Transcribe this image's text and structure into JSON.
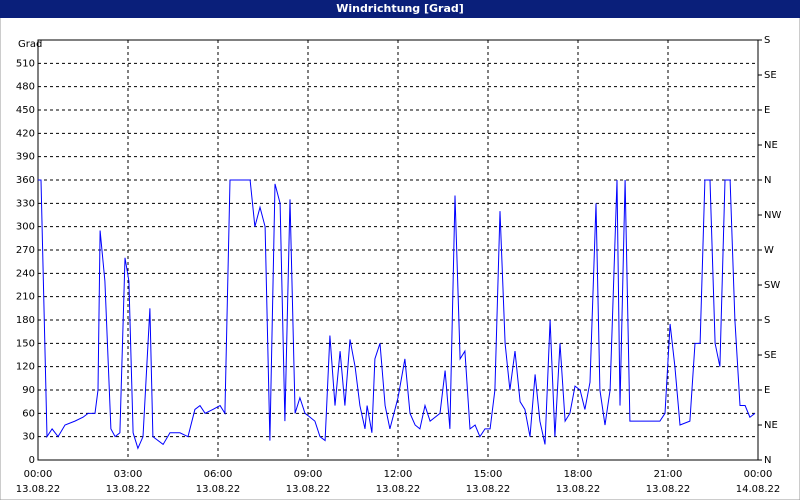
{
  "chart_data": {
    "type": "line",
    "title": "Windrichtung [Grad]",
    "y_label": "Grad",
    "x": [
      0,
      0.1,
      0.3,
      0.47,
      0.67,
      0.9,
      1.23,
      1.5,
      1.67,
      1.9,
      2,
      2.07,
      2.23,
      2.43,
      2.57,
      2.73,
      2.9,
      3.03,
      3.17,
      3.33,
      3.5,
      3.73,
      3.83,
      4.17,
      4.4,
      4.73,
      5,
      5.23,
      5.4,
      5.57,
      5.83,
      6.07,
      6.23,
      6.4,
      7.07,
      7.23,
      7.4,
      7.57,
      7.73,
      7.9,
      8.07,
      8.23,
      8.4,
      8.57,
      8.73,
      8.9,
      9.07,
      9.23,
      9.4,
      9.57,
      9.73,
      9.9,
      10.07,
      10.23,
      10.4,
      10.57,
      10.73,
      10.9,
      10.97,
      11.13,
      11.23,
      11.4,
      11.57,
      11.73,
      12,
      12.23,
      12.4,
      12.57,
      12.73,
      12.9,
      13.07,
      13.4,
      13.57,
      13.73,
      13.9,
      14.07,
      14.23,
      14.4,
      14.57,
      14.73,
      14.9,
      15.07,
      15.23,
      15.4,
      15.57,
      15.73,
      15.9,
      16.07,
      16.23,
      16.4,
      16.57,
      16.73,
      16.9,
      17.07,
      17.23,
      17.4,
      17.57,
      17.73,
      17.9,
      18.07,
      18.23,
      18.4,
      18.6,
      18.73,
      18.9,
      19.07,
      19.3,
      19.4,
      19.57,
      19.73,
      20.07,
      20.4,
      20.73,
      20.9,
      21.07,
      21.23,
      21.4,
      21.73,
      21.9,
      22.07,
      22.23,
      22.4,
      22.57,
      22.73,
      22.9,
      23.07,
      23.23,
      23.4,
      23.57,
      23.73,
      23.9
    ],
    "series": [
      {
        "color": "#0000ff",
        "values": [
          360,
          360,
          30,
          40,
          30,
          45,
          50,
          55,
          60,
          60,
          90,
          295,
          230,
          40,
          30,
          35,
          260,
          230,
          35,
          15,
          30,
          195,
          30,
          20,
          35,
          35,
          30,
          65,
          70,
          60,
          65,
          70,
          60,
          360,
          360,
          300,
          325,
          300,
          25,
          355,
          330,
          50,
          335,
          60,
          80,
          60,
          55,
          50,
          30,
          25,
          160,
          70,
          140,
          70,
          155,
          120,
          70,
          40,
          70,
          35,
          130,
          150,
          70,
          40,
          80,
          130,
          60,
          45,
          40,
          70,
          50,
          60,
          115,
          40,
          340,
          130,
          140,
          40,
          45,
          30,
          40,
          40,
          90,
          320,
          150,
          90,
          140,
          75,
          65,
          30,
          110,
          50,
          20,
          180,
          30,
          150,
          50,
          60,
          95,
          90,
          65,
          100,
          330,
          90,
          45,
          90,
          360,
          70,
          360,
          50,
          50,
          50,
          50,
          60,
          175,
          120,
          45,
          50,
          150,
          150,
          360,
          360,
          150,
          120,
          360,
          360,
          180,
          70,
          70,
          55,
          60
        ]
      }
    ],
    "xlim": [
      0,
      24
    ],
    "xticks": [
      {
        "value": 0,
        "label": "00:00"
      },
      {
        "value": 3,
        "label": "03:00"
      },
      {
        "value": 6,
        "label": "06:00"
      },
      {
        "value": 9,
        "label": "09:00"
      },
      {
        "value": 12,
        "label": "12:00"
      },
      {
        "value": 15,
        "label": "15:00"
      },
      {
        "value": 18,
        "label": "18:00"
      },
      {
        "value": 21,
        "label": "21:00"
      },
      {
        "value": 24,
        "label": "00:00"
      }
    ],
    "xtick_dates": [
      "13.08.22",
      "13.08.22",
      "13.08.22",
      "13.08.22",
      "13.08.22",
      "13.08.22",
      "13.08.22",
      "13.08.22",
      "14.08.22"
    ],
    "ylim": [
      0,
      540
    ],
    "yticks": [
      0,
      30,
      60,
      90,
      120,
      150,
      180,
      210,
      240,
      270,
      300,
      330,
      360,
      390,
      420,
      450,
      480,
      510
    ],
    "y2lim": [
      0,
      540
    ],
    "y2ticks": [
      {
        "value": 0,
        "label": "N"
      },
      {
        "value": 45,
        "label": "NE"
      },
      {
        "value": 90,
        "label": "E"
      },
      {
        "value": 135,
        "label": "SE"
      },
      {
        "value": 180,
        "label": "S"
      },
      {
        "value": 225,
        "label": "SW"
      },
      {
        "value": 270,
        "label": "W"
      },
      {
        "value": 315,
        "label": "NW"
      },
      {
        "value": 360,
        "label": "N"
      },
      {
        "value": 405,
        "label": "NE"
      },
      {
        "value": 450,
        "label": "E"
      },
      {
        "value": 495,
        "label": "SE"
      },
      {
        "value": 540,
        "label": "S"
      }
    ],
    "grid": true
  }
}
